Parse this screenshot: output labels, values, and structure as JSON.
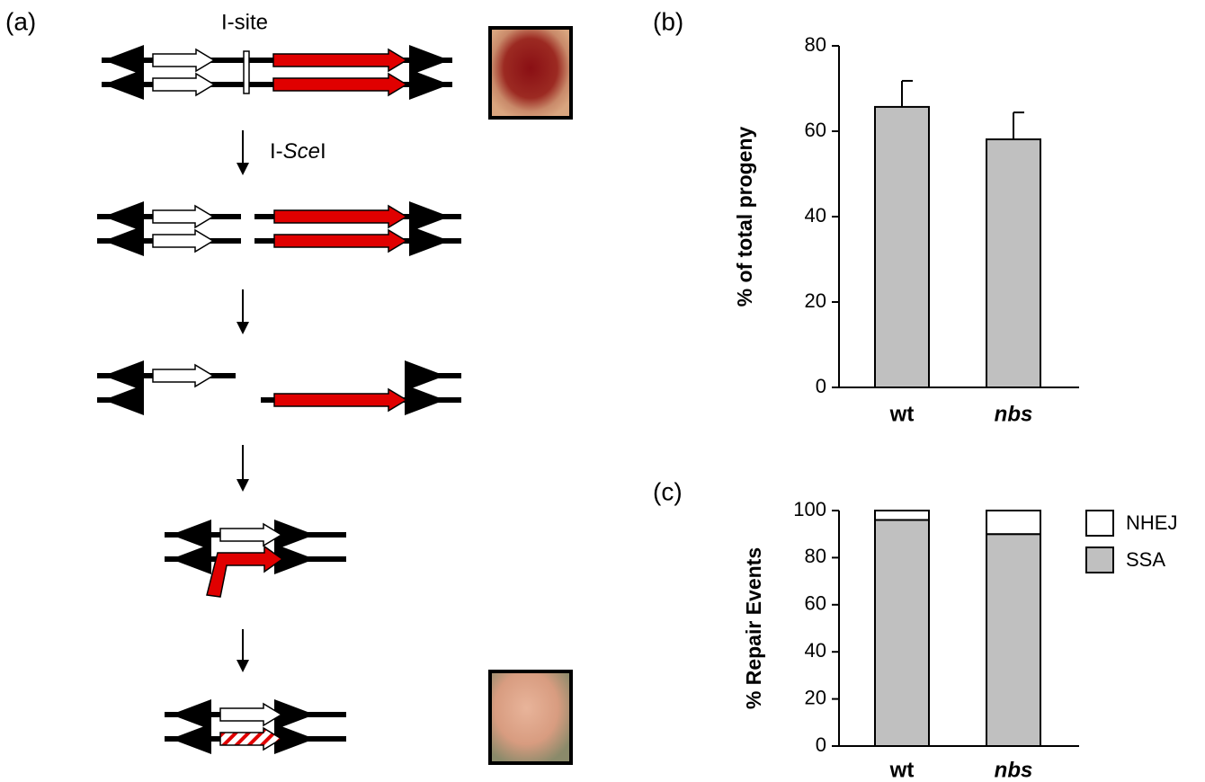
{
  "panel_labels": [
    "(a)",
    "(b)",
    "(c)"
  ],
  "diagram": {
    "site_label": "I-site",
    "enzyme": {
      "prefix": "I-",
      "italic": "Sce",
      "suffix": "I"
    }
  },
  "chart_data": [
    {
      "type": "bar",
      "ylabel": "% of total progeny",
      "categories": [
        "wt",
        "nbs"
      ],
      "values": [
        65.7,
        58.1
      ],
      "errors": [
        6.1,
        6.3
      ],
      "color": "#c0c0c0",
      "ylim": [
        0,
        80
      ],
      "yticks": [
        0,
        20,
        40,
        60,
        80
      ]
    },
    {
      "type": "stacked_bar",
      "ylabel": "% Repair Events",
      "categories": [
        "wt",
        "nbs"
      ],
      "series": [
        {
          "name": "SSA",
          "color": "#c0c0c0",
          "values": [
            96,
            90
          ]
        },
        {
          "name": "NHEJ",
          "color": "#ffffff",
          "values": [
            4,
            10
          ]
        }
      ],
      "ylim": [
        0,
        100
      ],
      "yticks": [
        0,
        20,
        40,
        60,
        80,
        100
      ]
    }
  ]
}
